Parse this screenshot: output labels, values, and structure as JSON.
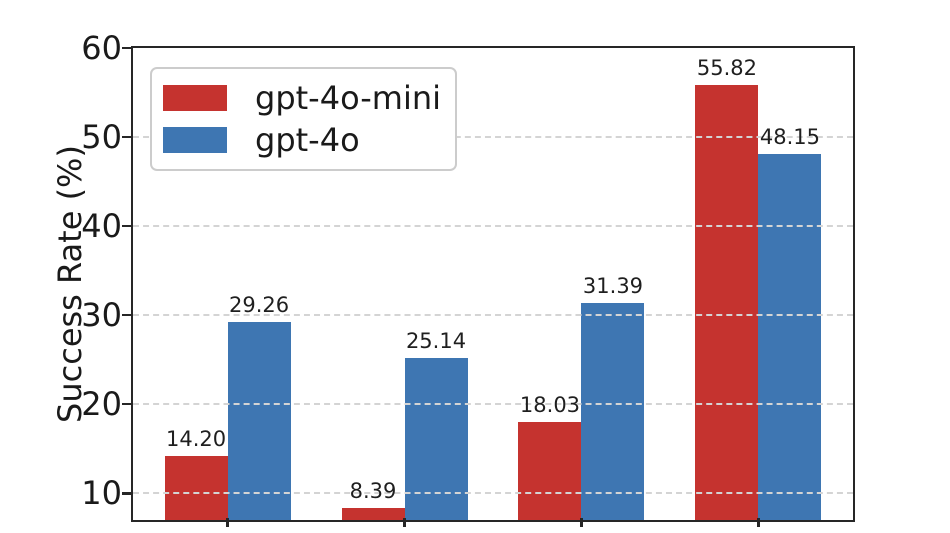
{
  "chart_data": {
    "type": "bar",
    "title": "",
    "xlabel": "",
    "ylabel": "Success Rate (%)",
    "categories": [
      "",
      "",
      "",
      ""
    ],
    "series": [
      {
        "name": "gpt-4o-mini",
        "color": "#c5332f",
        "values": [
          14.2,
          8.39,
          18.03,
          55.82
        ]
      },
      {
        "name": "gpt-4o",
        "color": "#3e76b2",
        "values": [
          29.26,
          25.14,
          31.39,
          48.15
        ]
      }
    ],
    "bar_value_labels": [
      [
        "14.20",
        "8.39",
        "18.03",
        "55.82"
      ],
      [
        "29.26",
        "25.14",
        "31.39",
        "48.15"
      ]
    ],
    "ylim": [
      7,
      60
    ],
    "yticks": [
      10,
      20,
      30,
      40,
      50,
      60
    ],
    "grid": "horizontal dashed, drawn over bars",
    "legend_position": "upper left"
  },
  "colors": {
    "background": "#ffffff",
    "spine": "#262626",
    "grid": "#d4d4d4",
    "text": "#1a1a1a",
    "red_series": "#c5332f",
    "blue_series": "#3e76b2"
  }
}
